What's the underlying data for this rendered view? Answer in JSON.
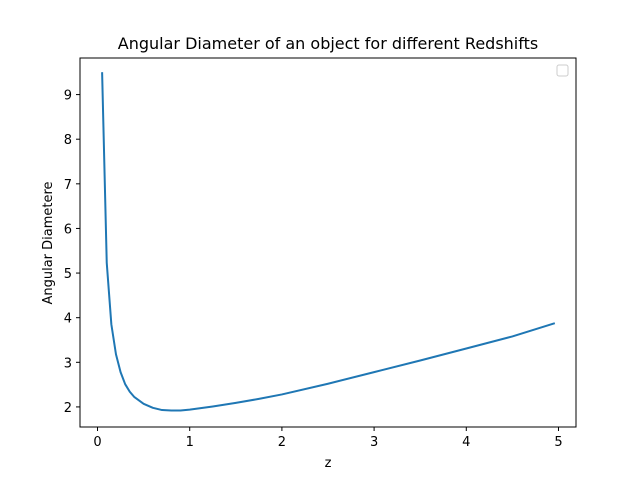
{
  "chart_data": {
    "type": "line",
    "title": "Angular Diameter of an object for different Redshifts",
    "xlabel": "z",
    "ylabel": "Angular Diametere",
    "xlim": [
      -0.19,
      5.19
    ],
    "ylim": [
      1.55,
      9.82
    ],
    "xticks": [
      0,
      1,
      2,
      3,
      4,
      5
    ],
    "yticks": [
      2,
      3,
      4,
      5,
      6,
      7,
      8,
      9
    ],
    "legend": {
      "placement": "top-right",
      "entries": []
    },
    "grid": false,
    "series": [
      {
        "color": "#1f77b4",
        "x": [
          0.05,
          0.1,
          0.15,
          0.2,
          0.25,
          0.3,
          0.35,
          0.4,
          0.5,
          0.6,
          0.7,
          0.8,
          0.9,
          1.0,
          1.25,
          1.5,
          1.75,
          2.0,
          2.5,
          3.0,
          3.5,
          4.0,
          4.5,
          4.95
        ],
        "y": [
          9.48,
          5.23,
          3.85,
          3.18,
          2.78,
          2.51,
          2.34,
          2.22,
          2.07,
          1.98,
          1.93,
          1.92,
          1.92,
          1.94,
          2.01,
          2.09,
          2.18,
          2.28,
          2.52,
          2.78,
          3.04,
          3.31,
          3.58,
          3.87
        ]
      }
    ]
  }
}
